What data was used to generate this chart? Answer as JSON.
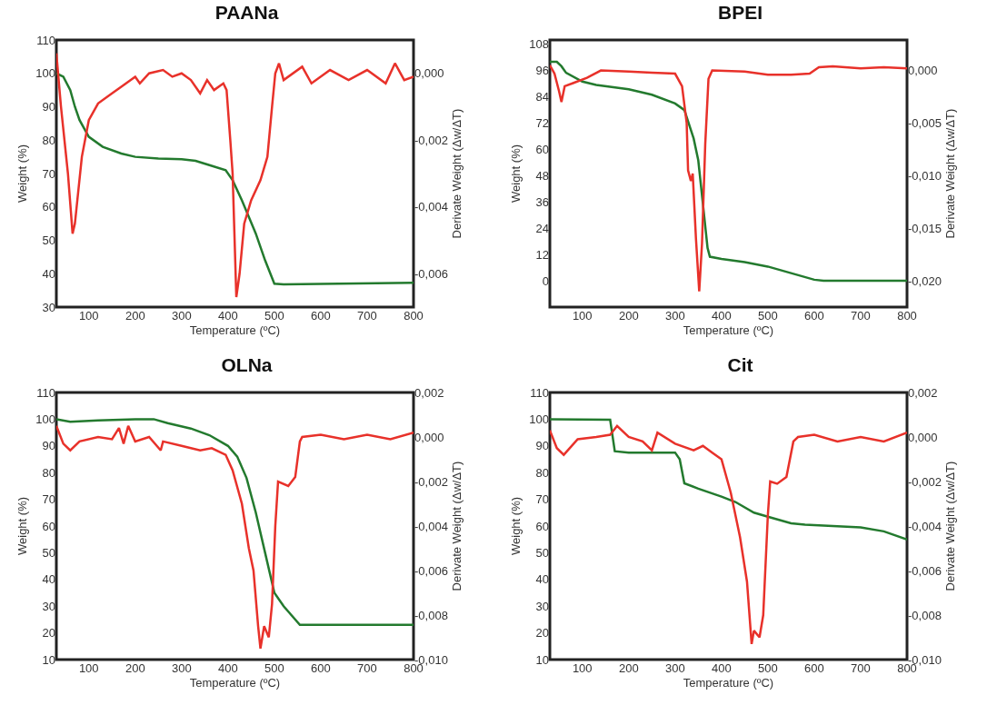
{
  "chart_data": [
    {
      "type": "line",
      "title": "PAANa",
      "xlabel": "Temperature (ºC)",
      "ylabel": "Weight (%)",
      "y2label": "Derivate Weight (Δw/ΔT)",
      "xlim": [
        30,
        800
      ],
      "xticks": [
        100,
        200,
        300,
        400,
        500,
        600,
        700,
        800
      ],
      "ylim": [
        30,
        110
      ],
      "yticks": [
        30,
        40,
        50,
        60,
        70,
        80,
        90,
        100,
        110
      ],
      "y2lim": [
        -0.007,
        0.001
      ],
      "y2ticks": [
        {
          "value": 0,
          "label": "0,000"
        },
        {
          "value": -0.002,
          "label": "-0,002"
        },
        {
          "value": -0.004,
          "label": "-0,004"
        },
        {
          "value": -0.006,
          "label": "-0,006"
        }
      ],
      "grid": false,
      "series": [
        {
          "color": "#237a2e",
          "x": [
            30,
            45,
            60,
            70,
            80,
            100,
            130,
            170,
            200,
            250,
            300,
            330,
            360,
            395,
            410,
            430,
            460,
            480,
            500,
            520,
            800
          ],
          "values": [
            100,
            99,
            95,
            90,
            86,
            81,
            78,
            76,
            75,
            74.5,
            74.3,
            73.8,
            72.5,
            71,
            68,
            62,
            52,
            44,
            37,
            36.8,
            37.3
          ]
        },
        {
          "color": "#e8312a",
          "axis": "y2",
          "x": [
            30,
            40,
            55,
            65,
            70,
            85,
            100,
            120,
            150,
            170,
            200,
            210,
            230,
            260,
            280,
            300,
            320,
            340,
            355,
            370,
            390,
            397,
            405,
            410,
            418,
            425,
            435,
            450,
            470,
            485,
            495,
            502,
            510,
            520,
            560,
            580,
            620,
            660,
            700,
            740,
            760,
            780,
            800
          ],
          "values": [
            0.0006,
            -0.001,
            -0.003,
            -0.0048,
            -0.0045,
            -0.0025,
            -0.0014,
            -0.0009,
            -0.0006,
            -0.0004,
            -0.0001,
            -0.0003,
            0,
            0.0001,
            -0.0001,
            0,
            -0.0002,
            -0.0006,
            -0.0002,
            -0.0005,
            -0.0003,
            -0.0005,
            -0.002,
            -0.003,
            -0.0067,
            -0.006,
            -0.0045,
            -0.0038,
            -0.0032,
            -0.0025,
            -0.001,
            0,
            0.0003,
            -0.0002,
            0.0002,
            -0.0003,
            0.0001,
            -0.0002,
            0.0001,
            -0.0003,
            0.0003,
            -0.0002,
            -0.0001
          ]
        }
      ]
    },
    {
      "type": "line",
      "title": "BPEI",
      "xlabel": "Temperature (ºC)",
      "ylabel": "Weight (%)",
      "y2label": "Derivate Weight (Δw/ΔT)",
      "xlim": [
        30,
        800
      ],
      "xticks": [
        100,
        200,
        300,
        400,
        500,
        600,
        700,
        800
      ],
      "ylim": [
        -12,
        110
      ],
      "yticks": [
        0,
        12,
        24,
        36,
        48,
        60,
        72,
        84,
        96,
        108
      ],
      "y2lim": [
        -0.0225,
        0.0029
      ],
      "y2ticks": [
        {
          "value": 0,
          "label": "0,000"
        },
        {
          "value": -0.005,
          "label": "-0,005"
        },
        {
          "value": -0.01,
          "label": "-0,010"
        },
        {
          "value": -0.015,
          "label": "-0,015"
        },
        {
          "value": -0.02,
          "label": "-0,020"
        }
      ],
      "grid": false,
      "series": [
        {
          "color": "#237a2e",
          "x": [
            30,
            45,
            55,
            65,
            100,
            130,
            200,
            250,
            300,
            320,
            340,
            350,
            360,
            370,
            375,
            400,
            450,
            500,
            550,
            600,
            620,
            800
          ],
          "values": [
            100,
            100,
            98,
            95,
            91,
            89.5,
            87.5,
            85,
            81,
            78,
            65,
            55,
            35,
            15,
            11,
            10,
            8.5,
            6.5,
            3.5,
            0.5,
            0,
            0
          ]
        },
        {
          "color": "#e8312a",
          "axis": "y2",
          "x": [
            30,
            40,
            50,
            55,
            62,
            80,
            110,
            140,
            200,
            250,
            300,
            315,
            325,
            328,
            334,
            338,
            345,
            352,
            358,
            365,
            372,
            380,
            450,
            500,
            550,
            590,
            610,
            640,
            700,
            750,
            800
          ],
          "values": [
            0.0005,
            -0.0003,
            -0.002,
            -0.003,
            -0.0015,
            -0.0012,
            -0.0007,
            0,
            -0.0001,
            -0.0002,
            -0.0003,
            -0.0015,
            -0.005,
            -0.0095,
            -0.0105,
            -0.0098,
            -0.016,
            -0.021,
            -0.0165,
            -0.007,
            -0.0008,
            0,
            -0.0001,
            -0.0004,
            -0.0004,
            -0.0003,
            0.0003,
            0.0004,
            0.0002,
            0.0003,
            0.0002
          ]
        }
      ]
    },
    {
      "type": "line",
      "title": "OLNa",
      "xlabel": "Temperature (ºC)",
      "ylabel": "Weight (%)",
      "y2label": "Derivate Weight (Δw/ΔT)",
      "xlim": [
        30,
        800
      ],
      "xticks": [
        100,
        200,
        300,
        400,
        500,
        600,
        700,
        800
      ],
      "ylim": [
        10,
        110
      ],
      "yticks": [
        10,
        20,
        30,
        40,
        50,
        60,
        70,
        80,
        90,
        100,
        110
      ],
      "y2lim": [
        -0.01,
        0.002
      ],
      "y2ticks": [
        {
          "value": -0.01,
          "label": "-0,010"
        },
        {
          "value": -0.008,
          "label": "-0,008"
        },
        {
          "value": -0.006,
          "label": "-0,006"
        },
        {
          "value": -0.004,
          "label": "-0,004"
        },
        {
          "value": -0.002,
          "label": "-0,002"
        },
        {
          "value": 0,
          "label": "0,000"
        },
        {
          "value": 0.002,
          "label": "0,002"
        }
      ],
      "grid": false,
      "series": [
        {
          "color": "#237a2e",
          "x": [
            30,
            60,
            120,
            200,
            240,
            270,
            320,
            360,
            400,
            420,
            440,
            460,
            480,
            500,
            520,
            555,
            800
          ],
          "values": [
            100,
            99,
            99.5,
            100,
            100,
            98.5,
            96.5,
            94,
            90,
            86,
            78,
            65,
            50,
            35,
            30,
            23,
            23
          ]
        },
        {
          "color": "#e8312a",
          "axis": "y2",
          "x": [
            30,
            45,
            60,
            80,
            120,
            150,
            165,
            175,
            185,
            200,
            230,
            255,
            260,
            300,
            340,
            365,
            395,
            410,
            430,
            445,
            455,
            465,
            470,
            478,
            488,
            495,
            502,
            508,
            530,
            545,
            555,
            560,
            600,
            650,
            700,
            750,
            800
          ],
          "values": [
            0.0005,
            -0.0003,
            -0.0006,
            -0.0002,
            0,
            -0.0001,
            0.0004,
            -0.0003,
            0.0005,
            -0.0002,
            0,
            -0.0006,
            -0.0002,
            -0.0004,
            -0.0006,
            -0.0005,
            -0.0008,
            -0.0015,
            -0.003,
            -0.005,
            -0.006,
            -0.0085,
            -0.0095,
            -0.0085,
            -0.009,
            -0.0075,
            -0.004,
            -0.002,
            -0.0022,
            -0.0018,
            -0.0002,
            0,
            0.0001,
            -0.0001,
            0.0001,
            -0.0001,
            0.0002
          ]
        }
      ]
    },
    {
      "type": "line",
      "title": "Cit",
      "xlabel": "Temperature (ºC)",
      "ylabel": "Weight (%)",
      "y2label": "Derivate Weight (Δw/ΔT)",
      "xlim": [
        30,
        800
      ],
      "xticks": [
        100,
        200,
        300,
        400,
        500,
        600,
        700,
        800
      ],
      "ylim": [
        10,
        110
      ],
      "yticks": [
        10,
        20,
        30,
        40,
        50,
        60,
        70,
        80,
        90,
        100,
        110
      ],
      "y2lim": [
        -0.01,
        0.002
      ],
      "y2ticks": [
        {
          "value": -0.01,
          "label": "-0,010"
        },
        {
          "value": -0.008,
          "label": "-0,008"
        },
        {
          "value": -0.006,
          "label": "-0,006"
        },
        {
          "value": -0.004,
          "label": "-0,004"
        },
        {
          "value": -0.002,
          "label": "-0,002"
        },
        {
          "value": 0,
          "label": "0,000"
        },
        {
          "value": 0.002,
          "label": "0,002"
        }
      ],
      "grid": false,
      "series": [
        {
          "color": "#237a2e",
          "x": [
            30,
            160,
            170,
            200,
            300,
            310,
            320,
            350,
            400,
            430,
            470,
            500,
            550,
            580,
            700,
            750,
            800
          ],
          "values": [
            100,
            99.8,
            88,
            87.5,
            87.5,
            85,
            76,
            74,
            71,
            69,
            65,
            63.5,
            61,
            60.5,
            59.5,
            58,
            55
          ]
        },
        {
          "color": "#e8312a",
          "axis": "y2",
          "x": [
            30,
            45,
            60,
            90,
            130,
            160,
            175,
            200,
            230,
            250,
            262,
            300,
            340,
            360,
            380,
            400,
            420,
            440,
            455,
            465,
            470,
            482,
            490,
            500,
            505,
            520,
            540,
            555,
            565,
            600,
            650,
            700,
            750,
            800
          ],
          "values": [
            0.0003,
            -0.0005,
            -0.0008,
            -0.0001,
            0,
            0.0001,
            0.0005,
            0,
            -0.0002,
            -0.0006,
            0.0002,
            -0.0003,
            -0.0006,
            -0.0004,
            -0.0007,
            -0.001,
            -0.0025,
            -0.0045,
            -0.0065,
            -0.0093,
            -0.0087,
            -0.009,
            -0.008,
            -0.0035,
            -0.002,
            -0.0021,
            -0.0018,
            -0.0002,
            0,
            0.0001,
            -0.0002,
            0,
            -0.0002,
            0.0002
          ]
        }
      ]
    }
  ]
}
